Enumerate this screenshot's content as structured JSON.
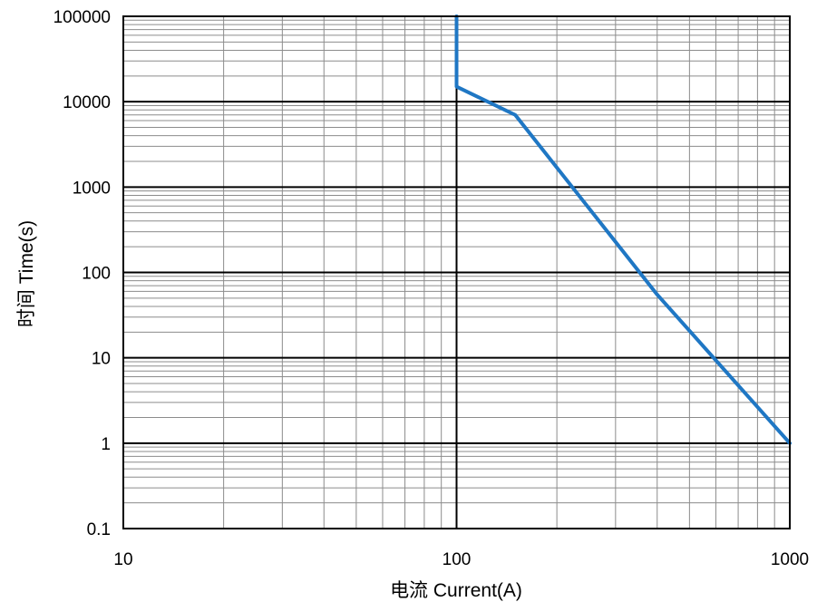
{
  "chart_data": {
    "type": "line",
    "title": "",
    "xlabel": "电流 Current(A)",
    "ylabel": "时间 Time(s)",
    "x_scale": "log",
    "y_scale": "log",
    "xlim": [
      10,
      1000
    ],
    "ylim": [
      0.1,
      100000
    ],
    "x_ticks": [
      "10",
      "100",
      "1000"
    ],
    "y_ticks": [
      "100000",
      "10000",
      "1000",
      "100",
      "10",
      "1",
      "0.1"
    ],
    "grid": true,
    "legend": "none",
    "series": [
      {
        "color": "#1f77c4",
        "points": [
          {
            "x": 100,
            "y": 100000
          },
          {
            "x": 100,
            "y": 15000
          },
          {
            "x": 150,
            "y": 7000
          },
          {
            "x": 400,
            "y": 55
          },
          {
            "x": 1000,
            "y": 1
          }
        ]
      }
    ]
  }
}
